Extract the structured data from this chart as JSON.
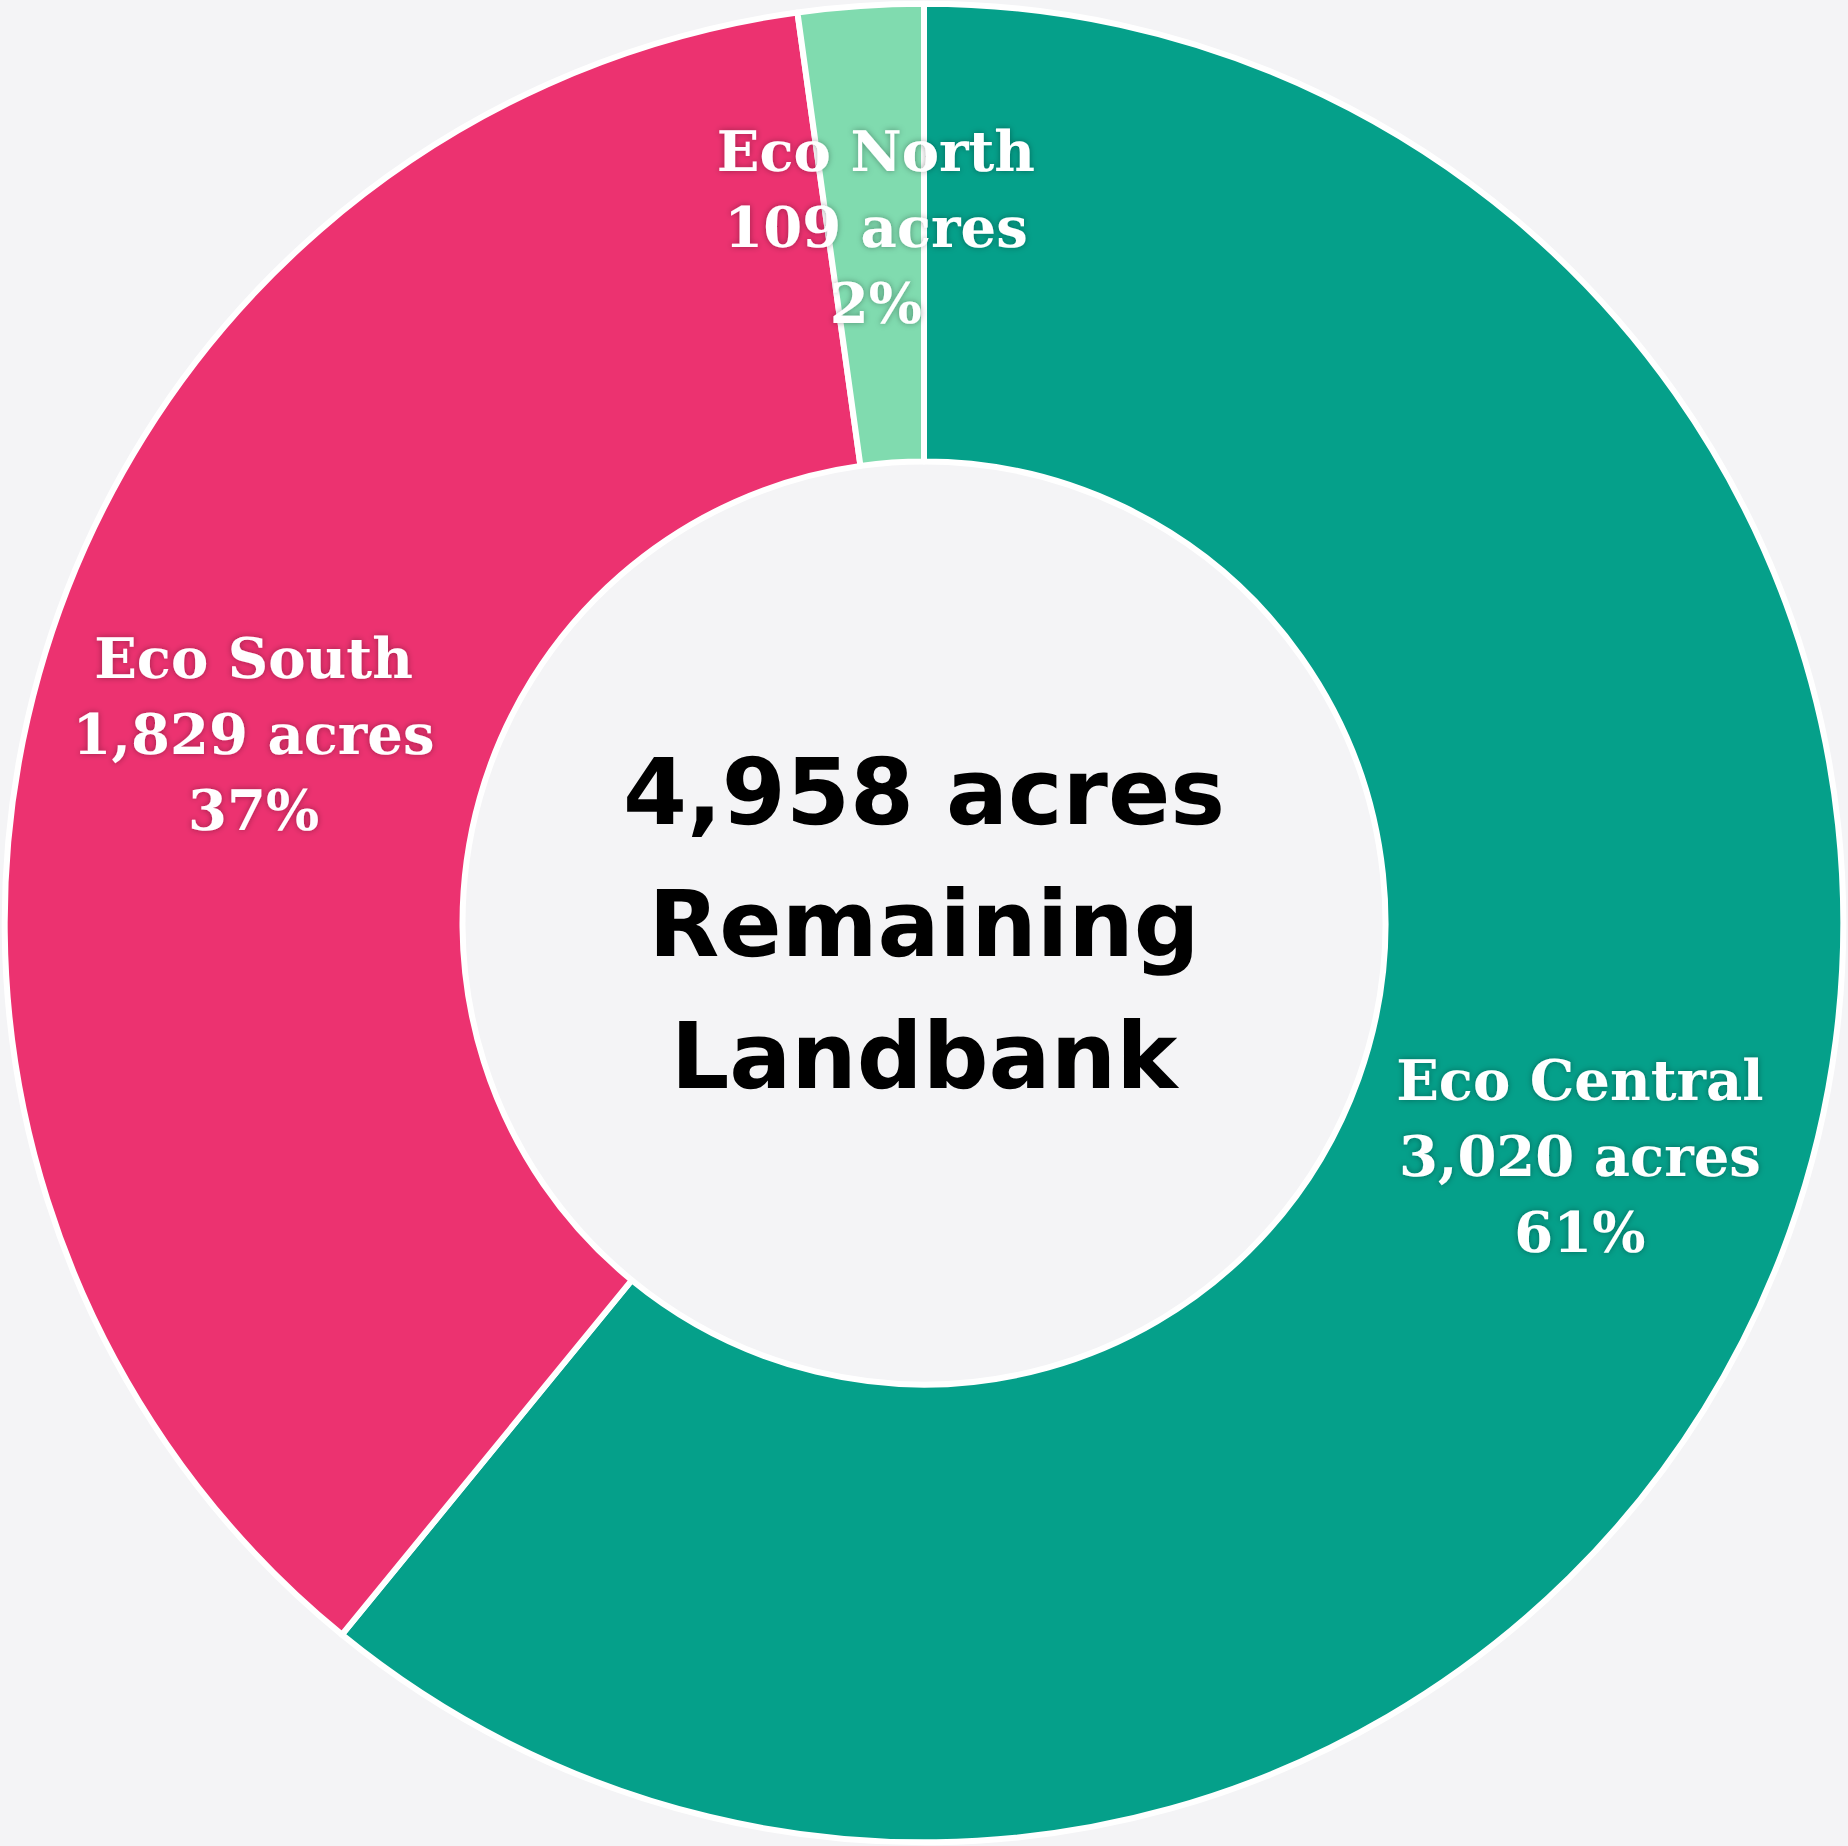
{
  "chart_data": {
    "type": "donut",
    "categories": [
      "Eco Central",
      "Eco South",
      "Eco North"
    ],
    "values": [
      3020,
      1829,
      109
    ],
    "value_labels": [
      "3,020 acres\n61%",
      "1,829 acres\n37%",
      "109 acres\n2%"
    ],
    "colors": [
      "#05a08a",
      "#ec3270",
      "#80dbaf"
    ],
    "annotations": [
      "4,958 acres\nRemaining\nLandbank"
    ],
    "legend": false
  }
}
